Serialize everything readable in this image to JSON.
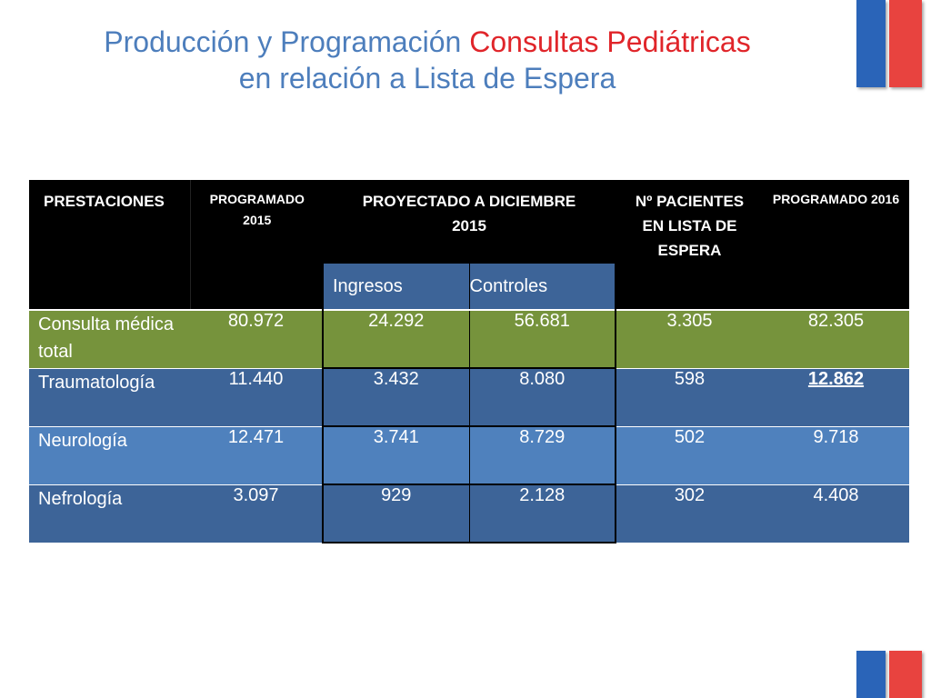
{
  "title": {
    "line1_part1": "Producción y Programación ",
    "line1_accent": "Consultas Pediátricas",
    "line2": "en relación a Lista de Espera"
  },
  "table": {
    "headers": {
      "prestaciones": "PRESTACIONES",
      "programado_2015": "PROGRAMADO 2015",
      "proyectado": "PROYECTADO A DICIEMBRE 2015",
      "pacientes": "Nº PACIENTES EN LISTA DE ESPERA",
      "programado_2016": "PROGRAMADO 2016"
    },
    "subheaders": {
      "ingresos": "Ingresos",
      "controles": "Controles"
    },
    "rows": [
      {
        "prestacion": "Consulta médica total",
        "programado_2015": "80.972",
        "ingresos": "24.292",
        "controles": "56.681",
        "pacientes": "3.305",
        "programado_2016": "82.305"
      },
      {
        "prestacion": "Traumatología",
        "programado_2015": "11.440",
        "ingresos": "3.432",
        "controles": "8.080",
        "pacientes": "598",
        "programado_2016": "12.862"
      },
      {
        "prestacion": "Neurología",
        "programado_2015": "12.471",
        "ingresos": "3.741",
        "controles": "8.729",
        "pacientes": "502",
        "programado_2016": "9.718"
      },
      {
        "prestacion": "Nefrología",
        "programado_2015": "3.097",
        "ingresos": "929",
        "controles": "2.128",
        "pacientes": "302",
        "programado_2016": "4.408"
      }
    ]
  },
  "colors": {
    "title": "#4d7ebc",
    "title_accent": "#e0252a",
    "header_bg": "#000000",
    "row_green": "#76933c",
    "row_dark_blue": "#3d6498",
    "row_light_blue": "#4f81bd",
    "flag_blue": "#2a64b8",
    "flag_red": "#e8433f"
  }
}
